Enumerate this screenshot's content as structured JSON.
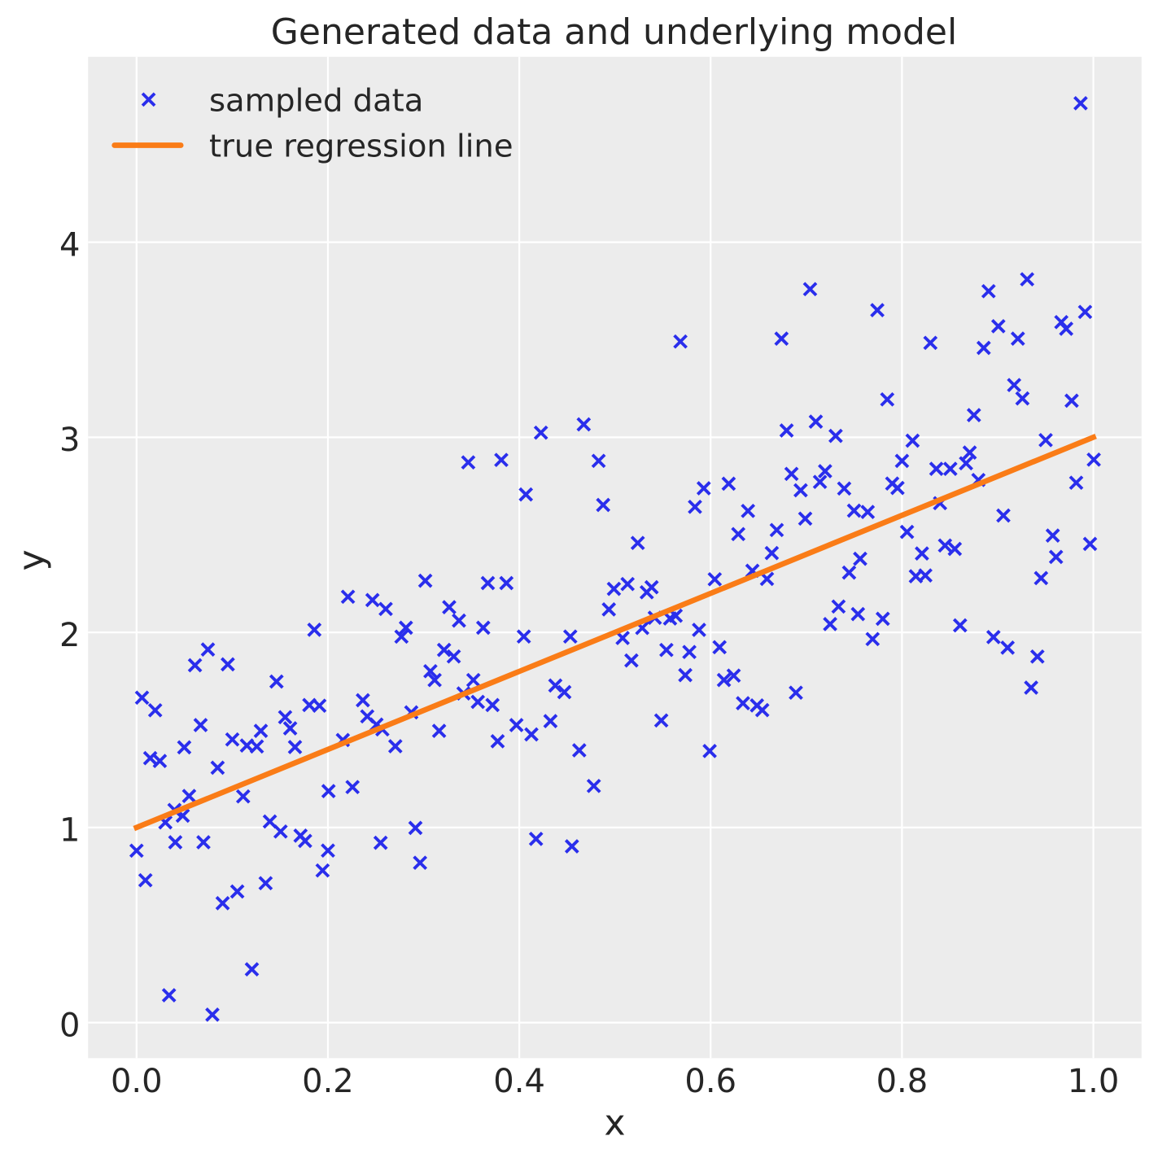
{
  "chart_data": {
    "type": "scatter",
    "title": "Generated data and underlying model",
    "xlabel": "x",
    "ylabel": "y",
    "xlim": [
      -0.0507,
      1.0504
    ],
    "ylim": [
      -0.1823,
      4.9501
    ],
    "xticks": [
      0.0,
      0.2,
      0.4,
      0.6,
      0.8,
      1.0
    ],
    "xtick_labels": [
      "0.0",
      "0.2",
      "0.4",
      "0.6",
      "0.8",
      "1.0"
    ],
    "yticks": [
      0,
      1,
      2,
      3,
      4
    ],
    "ytick_labels": [
      "0",
      "1",
      "2",
      "3",
      "4"
    ],
    "grid": true,
    "legend": {
      "position": "upper left",
      "entries": [
        {
          "label": "sampled data",
          "type": "marker",
          "marker": "x",
          "color": "#2a2eec"
        },
        {
          "label": "true regression line",
          "type": "line",
          "color": "#fa7c17"
        }
      ]
    },
    "series": [
      {
        "name": "sampled data",
        "type": "scatter",
        "marker": "x",
        "color": "#2a2eec",
        "points": [
          [
            0.704,
            3.7593
          ],
          [
            0.9867,
            4.712
          ],
          [
            0.9308,
            3.8098
          ],
          [
            0.8905,
            3.7489
          ],
          [
            0.9914,
            3.6425
          ],
          [
            0.9665,
            3.5904
          ],
          [
            0.9716,
            3.5562
          ],
          [
            0.9007,
            3.5691
          ],
          [
            0.9211,
            3.5057
          ],
          [
            0.8854,
            3.4582
          ],
          [
            0.8297,
            3.484
          ],
          [
            0.7846,
            3.1942
          ],
          [
            0.9172,
            3.2676
          ],
          [
            0.9259,
            3.1992
          ],
          [
            0.9773,
            3.1875
          ],
          [
            0.8752,
            3.1137
          ],
          [
            0.8111,
            2.9827
          ],
          [
            0.9502,
            2.9856
          ],
          [
            0.8708,
            2.9218
          ],
          [
            0.8669,
            2.8667
          ],
          [
            0.8,
            2.8788
          ],
          [
            0.8359,
            2.8384
          ],
          [
            0.8505,
            2.8384
          ],
          [
            1.0005,
            2.8855
          ],
          [
            0.7898,
            2.7629
          ],
          [
            0.7953,
            2.7404
          ],
          [
            0.8799,
            2.7812
          ],
          [
            0.9821,
            2.767
          ],
          [
            0.8398,
            2.6624
          ],
          [
            0.906,
            2.599
          ],
          [
            0.8053,
            2.5151
          ],
          [
            0.845,
            2.4455
          ],
          [
            0.8552,
            2.4279
          ],
          [
            0.8208,
            2.4046
          ],
          [
            0.9576,
            2.4964
          ],
          [
            0.9966,
            2.4534
          ],
          [
            0.961,
            2.3867
          ],
          [
            0.8145,
            2.2878
          ],
          [
            0.8244,
            2.292
          ],
          [
            0.9454,
            2.2782
          ],
          [
            0.5684,
            3.4907
          ],
          [
            0.674,
            3.5057
          ],
          [
            0.6794,
            3.0348
          ],
          [
            0.7099,
            3.0803
          ],
          [
            0.7307,
            3.0073
          ],
          [
            0.6845,
            2.8125
          ],
          [
            0.6941,
            2.7283
          ],
          [
            0.7143,
            2.7712
          ],
          [
            0.7196,
            2.8263
          ],
          [
            0.5928,
            2.7387
          ],
          [
            0.6188,
            2.762
          ],
          [
            0.5836,
            2.6436
          ],
          [
            0.6391,
            2.6227
          ],
          [
            0.7396,
            2.7374
          ],
          [
            0.7499,
            2.624
          ],
          [
            0.7642,
            2.6173
          ],
          [
            0.6989,
            2.5831
          ],
          [
            0.6691,
            2.5247
          ],
          [
            0.6289,
            2.5039
          ],
          [
            0.5238,
            2.4584
          ],
          [
            0.6639,
            2.4067
          ],
          [
            0.7563,
            2.3775
          ],
          [
            0.7447,
            2.3066
          ],
          [
            0.4226,
            3.0236
          ],
          [
            0.4674,
            3.0661
          ],
          [
            0.3467,
            2.8713
          ],
          [
            0.3812,
            2.8838
          ],
          [
            0.4069,
            2.707
          ],
          [
            0.4829,
            2.8792
          ],
          [
            0.4877,
            2.6532
          ],
          [
            0.3018,
            2.2649
          ],
          [
            0.3672,
            2.2528
          ],
          [
            0.3866,
            2.2528
          ],
          [
            0.4989,
            2.2231
          ],
          [
            0.5132,
            2.2478
          ],
          [
            0.5333,
            2.2056
          ],
          [
            0.5383,
            2.2315
          ],
          [
            0.6043,
            2.2724
          ],
          [
            0.6437,
            2.3157
          ],
          [
            0.6589,
            2.274
          ],
          [
            0.4936,
            2.1176
          ],
          [
            0.5285,
            2.0225
          ],
          [
            0.5416,
            2.0751
          ],
          [
            0.5576,
            2.0713
          ],
          [
            0.5635,
            2.0855
          ],
          [
            0.508,
            1.9712
          ],
          [
            0.5172,
            1.8561
          ],
          [
            0.5538,
            1.9099
          ],
          [
            0.5778,
            1.8995
          ],
          [
            0.5879,
            2.0129
          ],
          [
            0.6093,
            1.9241
          ],
          [
            0.5735,
            1.781
          ],
          [
            0.6139,
            1.756
          ],
          [
            0.6241,
            1.7785
          ],
          [
            0.6338,
            1.6371
          ],
          [
            0.6484,
            1.6254
          ],
          [
            0.654,
            1.6017
          ],
          [
            0.6891,
            1.6909
          ],
          [
            0.5484,
            1.5487
          ],
          [
            0.599,
            1.3919
          ],
          [
            0.7337,
            2.1326
          ],
          [
            0.7249,
            2.0425
          ],
          [
            0.754,
            2.0938
          ],
          [
            0.7693,
            1.9658
          ],
          [
            0.7799,
            2.0697
          ],
          [
            0.8607,
            2.0359
          ],
          [
            0.8956,
            1.9758
          ],
          [
            0.9104,
            1.9216
          ],
          [
            0.9415,
            1.8761
          ],
          [
            0.935,
            1.7168
          ],
          [
            0.221,
            2.1827
          ],
          [
            0.2466,
            2.1656
          ],
          [
            0.2604,
            2.1201
          ],
          [
            0.2815,
            2.0238
          ],
          [
            0.2768,
            1.9783
          ],
          [
            0.3268,
            2.1293
          ],
          [
            0.337,
            2.0605
          ],
          [
            0.3623,
            2.0238
          ],
          [
            0.4048,
            1.9787
          ],
          [
            0.4533,
            1.9787
          ],
          [
            0.3214,
            1.9103
          ],
          [
            0.3315,
            1.8765
          ],
          [
            0.3071,
            1.801
          ],
          [
            0.3115,
            1.7556
          ],
          [
            0.352,
            1.7556
          ],
          [
            0.3417,
            1.6872
          ],
          [
            0.3567,
            1.6438
          ],
          [
            0.372,
            1.6275
          ],
          [
            0.397,
            1.5249
          ],
          [
            0.3774,
            1.4419
          ],
          [
            0.4127,
            1.477
          ],
          [
            0.4377,
            1.7276
          ],
          [
            0.4471,
            1.6938
          ],
          [
            0.4326,
            1.5454
          ],
          [
            0.4627,
            1.3956
          ],
          [
            0.4779,
            1.2129
          ],
          [
            0.2705,
            1.4165
          ],
          [
            0.3162,
            1.4953
          ],
          [
            0.2871,
            1.59
          ],
          [
            0.2365,
            1.6521
          ],
          [
            0.2411,
            1.5696
          ],
          [
            0.2507,
            1.5274
          ],
          [
            0.2569,
            1.5028
          ],
          [
            0.2156,
            1.4482
          ],
          [
            0.2257,
            1.2071
          ],
          [
            0.2006,
            1.1867
          ],
          [
            0.1858,
            2.0133
          ],
          [
            0.0746,
            1.9124
          ],
          [
            0.0611,
            1.8315
          ],
          [
            0.0953,
            1.8361
          ],
          [
            0.1463,
            1.7481
          ],
          [
            0.0057,
            1.6655
          ],
          [
            0.0195,
            1.6008
          ],
          [
            0.0669,
            1.5249
          ],
          [
            0.1553,
            1.5654
          ],
          [
            0.1606,
            1.5082
          ],
          [
            0.1656,
            1.4123
          ],
          [
            0.1806,
            1.6275
          ],
          [
            0.1911,
            1.6242
          ],
          [
            0.1001,
            1.4511
          ],
          [
            0.1299,
            1.4953
          ],
          [
            0.1153,
            1.4202
          ],
          [
            0.1257,
            1.4152
          ],
          [
            0.0498,
            1.4106
          ],
          [
            0.0143,
            1.3556
          ],
          [
            0.0243,
            1.341
          ],
          [
            0.0847,
            1.3064
          ],
          [
            0.0549,
            1.1616
          ],
          [
            0.1114,
            1.1591
          ],
          [
            0.0,
            0.8813
          ],
          [
            0.0093,
            0.7295
          ],
          [
            0.09,
            0.6119
          ],
          [
            0.1053,
            0.6719
          ],
          [
            0.1349,
            0.7145
          ],
          [
            0.0405,
            0.9243
          ],
          [
            0.0699,
            0.9243
          ],
          [
            0.0301,
            1.0261
          ],
          [
            0.0396,
            1.0899
          ],
          [
            0.0483,
            1.0603
          ],
          [
            0.1393,
            1.0307
          ],
          [
            0.1505,
            0.9794
          ],
          [
            0.1714,
            0.9581
          ],
          [
            0.1761,
            0.931
          ],
          [
            0.2,
            0.8818
          ],
          [
            0.1944,
            0.7796
          ],
          [
            0.1205,
            0.2732
          ],
          [
            0.0339,
            0.1401
          ],
          [
            0.0793,
            0.0405
          ],
          [
            0.2963,
            0.8192
          ],
          [
            0.455,
            0.9034
          ],
          [
            0.2551,
            0.9218
          ],
          [
            0.2915,
            0.9977
          ],
          [
            0.4175,
            0.9414
          ],
          [
            0.7742,
            3.6517
          ]
        ]
      },
      {
        "name": "true regression line",
        "type": "line",
        "color": "#fa7c17",
        "x": [
          0.0,
          1.0
        ],
        "y": [
          1.0,
          3.0
        ],
        "model": "y = 1 + 2x"
      }
    ]
  },
  "style": {
    "figure_background": "#ffffff",
    "axes_background": "#ececec",
    "grid_color": "#ffffff",
    "text_color": "#262626",
    "marker_color": "#2a2eec",
    "line_color": "#fa7c17"
  }
}
